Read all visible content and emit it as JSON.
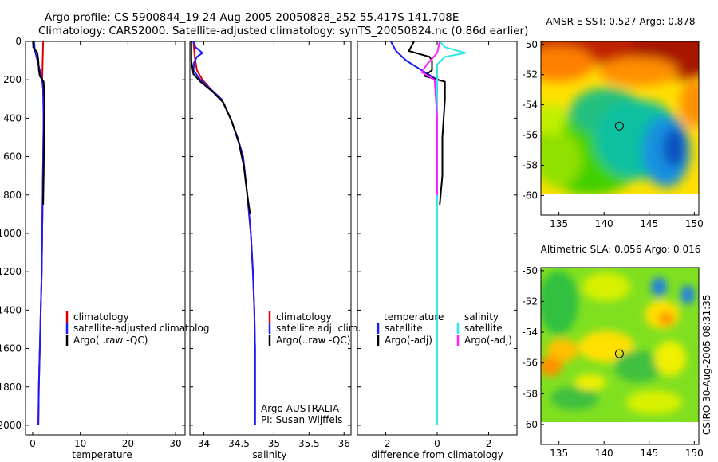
{
  "header": {
    "line1": "Argo profile: CS 5900844_19 24-Aug-2005 20050828_252 55.417S 141.708E",
    "line2": "Climatology: CARS2000. Satellite-adjusted climatology: synTS_20050824.nc (0.86d earlier)"
  },
  "footer_vertical": "CSIRO 30-Aug-2005 08:31:35",
  "colors": {
    "climatology": "#e00000",
    "satellite": "#1a1aff",
    "argo": "#000000",
    "sal_satellite": "#30e8e8",
    "sal_argo": "#ff20ff"
  },
  "chart_data": [
    {
      "type": "line",
      "name": "temperature-profile",
      "xlabel": "temperature",
      "ylabel": "",
      "xlim": [
        -1.5,
        32
      ],
      "ylim": [
        2050,
        0
      ],
      "xticks": [
        0,
        10,
        20,
        30
      ],
      "yticks": [
        0,
        200,
        400,
        600,
        800,
        1000,
        1200,
        1400,
        1600,
        1800,
        2000
      ],
      "legend": {
        "position": "right-lower",
        "entries": [
          "climatology",
          "satellite-adjusted climatolog",
          "Argo(..raw -QC)"
        ]
      },
      "series": [
        {
          "name": "climatology",
          "color_key": "climatology",
          "points": [
            [
              2.2,
              0
            ],
            [
              2.1,
              100
            ],
            [
              2.0,
              200
            ],
            [
              2.2,
              250
            ],
            [
              2.3,
              400
            ],
            [
              2.2,
              600
            ],
            [
              2.1,
              800
            ],
            [
              2.0,
              1000
            ],
            [
              1.9,
              1200
            ],
            [
              1.7,
              1400
            ],
            [
              1.5,
              1600
            ],
            [
              1.3,
              1800
            ],
            [
              1.2,
              2000
            ]
          ]
        },
        {
          "name": "satellite-adjusted climatolog",
          "color_key": "satellite",
          "points": [
            [
              0.3,
              0
            ],
            [
              0.5,
              50
            ],
            [
              1.0,
              100
            ],
            [
              1.5,
              150
            ],
            [
              2.0,
              200
            ],
            [
              2.2,
              250
            ],
            [
              2.3,
              400
            ],
            [
              2.2,
              600
            ],
            [
              2.1,
              800
            ],
            [
              2.0,
              1000
            ],
            [
              1.9,
              1200
            ],
            [
              1.7,
              1400
            ],
            [
              1.5,
              1600
            ],
            [
              1.3,
              1800
            ],
            [
              1.2,
              2000
            ]
          ]
        },
        {
          "name": "Argo(..raw -QC)",
          "color_key": "argo",
          "points": [
            [
              0.2,
              0
            ],
            [
              0.1,
              30
            ],
            [
              1.0,
              60
            ],
            [
              1.2,
              100
            ],
            [
              1.3,
              150
            ],
            [
              1.5,
              180
            ],
            [
              2.3,
              210
            ],
            [
              2.5,
              300
            ],
            [
              2.4,
              500
            ],
            [
              2.3,
              700
            ],
            [
              2.2,
              850
            ]
          ]
        }
      ]
    },
    {
      "type": "line",
      "name": "salinity-profile",
      "xlabel": "salinity",
      "ylabel": "",
      "xlim": [
        33.8,
        36.1
      ],
      "ylim": [
        2050,
        0
      ],
      "xticks": [
        34,
        34.5,
        35,
        35.5,
        36
      ],
      "xticklabels": [
        "34",
        "34.5",
        "35",
        "35.5",
        "36"
      ],
      "legend": {
        "position": "right-lower",
        "entries": [
          "climatology",
          "satellite adj. clim.",
          "Argo(..raw -QC)"
        ]
      },
      "annotation": [
        "Argo AUSTRALIA",
        "PI: Susan Wijffels"
      ],
      "series": [
        {
          "name": "climatology",
          "color_key": "climatology",
          "points": [
            [
              33.85,
              0
            ],
            [
              33.87,
              80
            ],
            [
              33.9,
              150
            ],
            [
              33.98,
              200
            ],
            [
              34.1,
              250
            ],
            [
              34.25,
              300
            ],
            [
              34.38,
              400
            ],
            [
              34.48,
              500
            ],
            [
              34.56,
              600
            ],
            [
              34.62,
              800
            ],
            [
              34.67,
              1000
            ],
            [
              34.7,
              1200
            ],
            [
              34.72,
              1400
            ],
            [
              34.73,
              1600
            ],
            [
              34.73,
              1800
            ],
            [
              34.73,
              2000
            ]
          ]
        },
        {
          "name": "satellite adj. clim.",
          "color_key": "satellite",
          "points": [
            [
              33.85,
              0
            ],
            [
              33.88,
              30
            ],
            [
              33.98,
              60
            ],
            [
              33.9,
              80
            ],
            [
              33.86,
              110
            ],
            [
              33.85,
              150
            ],
            [
              33.95,
              200
            ],
            [
              34.1,
              250
            ],
            [
              34.25,
              300
            ],
            [
              34.38,
              400
            ],
            [
              34.48,
              500
            ],
            [
              34.56,
              600
            ],
            [
              34.62,
              800
            ],
            [
              34.67,
              1000
            ],
            [
              34.7,
              1200
            ],
            [
              34.72,
              1400
            ],
            [
              34.73,
              1600
            ],
            [
              34.73,
              1800
            ],
            [
              34.73,
              2000
            ]
          ]
        },
        {
          "name": "Argo(..raw -QC)",
          "color_key": "argo",
          "points": [
            [
              33.82,
              0
            ],
            [
              33.82,
              100
            ],
            [
              33.85,
              170
            ],
            [
              33.95,
              210
            ],
            [
              34.12,
              260
            ],
            [
              34.28,
              320
            ],
            [
              34.4,
              420
            ],
            [
              34.5,
              530
            ],
            [
              34.57,
              650
            ],
            [
              34.62,
              800
            ],
            [
              34.66,
              900
            ]
          ]
        }
      ]
    },
    {
      "type": "line",
      "name": "difference-profile",
      "xlabel": "difference from climatology",
      "ylabel": "",
      "xlim": [
        -3.1,
        3.1
      ],
      "ylim": [
        2050,
        0
      ],
      "xticks": [
        -2,
        0,
        2
      ],
      "legend": {
        "position": "right-lower",
        "column_titles": [
          "temperature",
          "salinity"
        ],
        "left_entries": [
          "satellite",
          "Argo(-adj)"
        ],
        "right_entries": [
          "satellite",
          "Argo(-adj)"
        ]
      },
      "series": [
        {
          "name": "temperature satellite",
          "color_key": "satellite",
          "points": [
            [
              -1.8,
              0
            ],
            [
              -1.6,
              50
            ],
            [
              -1.2,
              100
            ],
            [
              -0.6,
              150
            ],
            [
              0.0,
              200
            ],
            [
              0.0,
              400
            ],
            [
              0.0,
              800
            ],
            [
              0.0,
              1200
            ],
            [
              0.0,
              1600
            ],
            [
              0.0,
              2000
            ]
          ]
        },
        {
          "name": "temperature Argo(-adj)",
          "color_key": "argo",
          "points": [
            [
              -0.9,
              0
            ],
            [
              -1.1,
              50
            ],
            [
              -0.3,
              80
            ],
            [
              -0.2,
              100
            ],
            [
              -0.2,
              150
            ],
            [
              -0.5,
              180
            ],
            [
              0.3,
              210
            ],
            [
              0.3,
              300
            ],
            [
              0.2,
              500
            ],
            [
              0.2,
              700
            ],
            [
              0.1,
              850
            ]
          ]
        },
        {
          "name": "salinity satellite",
          "color_key": "sal_satellite",
          "points": [
            [
              0.1,
              0
            ],
            [
              0.3,
              30
            ],
            [
              1.1,
              60
            ],
            [
              0.3,
              80
            ],
            [
              0.0,
              120
            ],
            [
              0.0,
              200
            ],
            [
              0.0,
              800
            ],
            [
              0.0,
              1600
            ],
            [
              0.0,
              2000
            ]
          ]
        },
        {
          "name": "salinity Argo(-adj)",
          "color_key": "sal_argo",
          "points": [
            [
              0.1,
              0
            ],
            [
              0.0,
              60
            ],
            [
              -0.4,
              120
            ],
            [
              -0.6,
              160
            ],
            [
              -0.1,
              200
            ],
            [
              0.0,
              400
            ],
            [
              0.0,
              800
            ]
          ]
        }
      ]
    },
    {
      "type": "heatmap",
      "name": "sst-map",
      "title": "AMSR-E SST: 0.527 Argo: 0.878",
      "xticks": [
        135,
        140,
        145,
        150
      ],
      "yticks": [
        -50,
        -52,
        -54,
        -56,
        -58,
        -60
      ],
      "xlim": [
        133,
        150.5
      ],
      "ylim": [
        -61.3,
        -49.8
      ],
      "marker": {
        "lon": 141.7,
        "lat": -55.4
      }
    },
    {
      "type": "heatmap",
      "name": "sla-map",
      "title": "Altimetric SLA: 0.056 Argo: 0.016",
      "xticks": [
        135,
        140,
        145,
        150
      ],
      "yticks": [
        -50,
        -52,
        -54,
        -56,
        -58,
        -60
      ],
      "xlim": [
        133,
        150.5
      ],
      "ylim": [
        -61.3,
        -49.8
      ],
      "marker": {
        "lon": 141.7,
        "lat": -55.4
      }
    }
  ]
}
